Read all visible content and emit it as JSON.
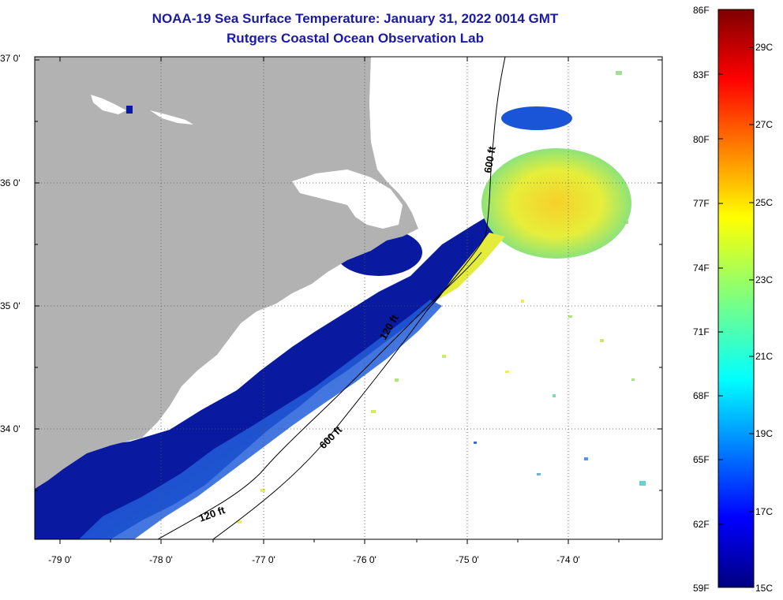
{
  "header": {
    "title_line1": "NOAA-19 Sea Surface Temperature:  January 31, 2022 0014 GMT",
    "title_line2": "Rutgers Coastal Ocean Observation Lab"
  },
  "map": {
    "lat_labels": [
      "37 0'",
      "36 0'",
      "35 0'",
      "34 0'"
    ],
    "lon_labels": [
      "-79 0'",
      "-78 0'",
      "-77 0'",
      "-76 0'",
      "-75 0'",
      "-74 0'"
    ],
    "contours": [
      {
        "label": "120 ft"
      },
      {
        "label": "600 ft"
      },
      {
        "label": "120 ft"
      },
      {
        "label": "600 ft"
      }
    ],
    "colors": {
      "land": "#b2b2b2",
      "ocean_cold": "#0a1aa0",
      "ocean_mid": "#1a6fe0",
      "ocean_warm": "#f5e832",
      "cloud_mask": "#ffffff"
    }
  },
  "colorbar": {
    "fahrenheit_ticks": [
      "86F",
      "83F",
      "80F",
      "77F",
      "74F",
      "71F",
      "68F",
      "65F",
      "62F",
      "59F"
    ],
    "celsius_ticks": [
      "29C",
      "27C",
      "25C",
      "23C",
      "21C",
      "19C",
      "17C",
      "15C"
    ],
    "fahrenheit_range": [
      59,
      86
    ],
    "celsius_range": [
      15,
      30
    ],
    "colormap": "jet"
  }
}
